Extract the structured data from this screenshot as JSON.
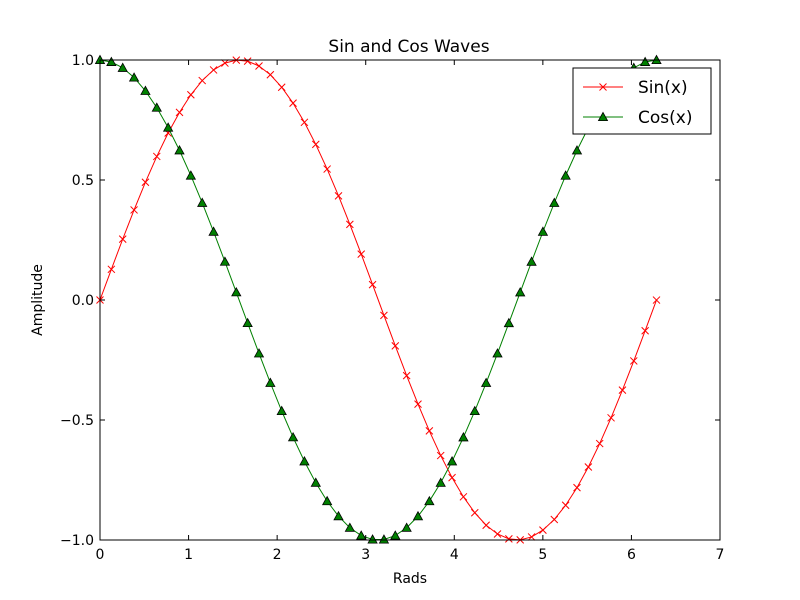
{
  "chart_data": {
    "type": "line",
    "title": "Sin and Cos Waves",
    "xlabel": "Rads",
    "ylabel": "Amplitude",
    "xlim": [
      0,
      7
    ],
    "ylim": [
      -1.0,
      1.0
    ],
    "xticks": [
      0,
      1,
      2,
      3,
      4,
      5,
      6,
      7
    ],
    "yticks": [
      -1.0,
      -0.5,
      0.0,
      0.5,
      1.0
    ],
    "xtick_labels": [
      "0",
      "1",
      "2",
      "3",
      "4",
      "5",
      "6",
      "7"
    ],
    "ytick_labels": [
      "−1.0",
      "−0.5",
      "0.0",
      "0.5",
      "1.0"
    ],
    "grid": false,
    "legend_position": "top-right",
    "x_range": [
      0,
      6.283
    ],
    "num_points": 50,
    "series": [
      {
        "name": "Sin(x)",
        "function": "sin",
        "color": "#ff0000",
        "marker": "x"
      },
      {
        "name": "Cos(x)",
        "function": "cos",
        "color": "#008000",
        "marker": "triangle"
      }
    ]
  }
}
